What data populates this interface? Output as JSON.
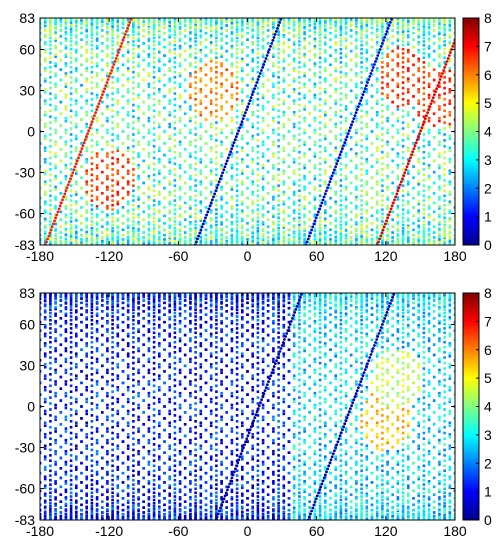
{
  "chart_data": [
    {
      "type": "scatter",
      "description_encoding": "ground-track points colored by value",
      "xlim": [
        -180,
        180
      ],
      "ylim": [
        -83,
        83
      ],
      "xticks": [
        "-180",
        "-120",
        "-60",
        "0",
        "60",
        "120",
        "180"
      ],
      "yticks": [
        "83",
        "60",
        "30",
        "0",
        "-30",
        "-60",
        "-83"
      ],
      "colorbar": {
        "min": 0,
        "max": 8,
        "ticks": [
          "8",
          "7",
          "6",
          "5",
          "4",
          "3",
          "2",
          "1",
          "0"
        ],
        "colormap": "jet"
      },
      "grid": false,
      "value_distribution": {
        "typical": 3.5,
        "spread": 1.3
      },
      "highlight_tracks": [
        {
          "x_at_equator": -8,
          "value": 0.5
        },
        {
          "x_at_equator": 88,
          "value": 0.8
        },
        {
          "x_at_equator": -138,
          "value": 6.8
        },
        {
          "x_at_equator": 150,
          "value": 7.2
        }
      ],
      "hot_spots": [
        {
          "lon": -120,
          "lat": -35,
          "value": 6.5
        },
        {
          "lon": -30,
          "lat": 30,
          "value": 6.0
        },
        {
          "lon": 135,
          "lat": 40,
          "value": 6.5
        },
        {
          "lon": 165,
          "lat": 25,
          "value": 6.5
        }
      ]
    },
    {
      "type": "scatter",
      "description_encoding": "ground-track points colored by value",
      "xlim": [
        -180,
        180
      ],
      "ylim": [
        -83,
        83
      ],
      "xticks": [
        "-180",
        "-120",
        "-60",
        "0",
        "60",
        "120",
        "180"
      ],
      "yticks": [
        "83",
        "60",
        "30",
        "0",
        "-30",
        "-60",
        "-83"
      ],
      "colorbar": {
        "min": 0,
        "max": 8,
        "ticks": [
          "8",
          "7",
          "6",
          "5",
          "4",
          "3",
          "2",
          "1",
          "0"
        ],
        "colormap": "jet"
      },
      "grid": false,
      "value_distribution": {
        "typical": 1.2,
        "spread": 0.9,
        "east_typical": 2.8
      },
      "highlight_tracks": [
        {
          "x_at_equator": 10,
          "value": 0.3
        },
        {
          "x_at_equator": 90,
          "value": 0.4
        }
      ],
      "hot_spots": [
        {
          "lon": 120,
          "lat": -10,
          "value": 5.5
        },
        {
          "lon": 130,
          "lat": 20,
          "value": 4.5
        }
      ]
    }
  ]
}
